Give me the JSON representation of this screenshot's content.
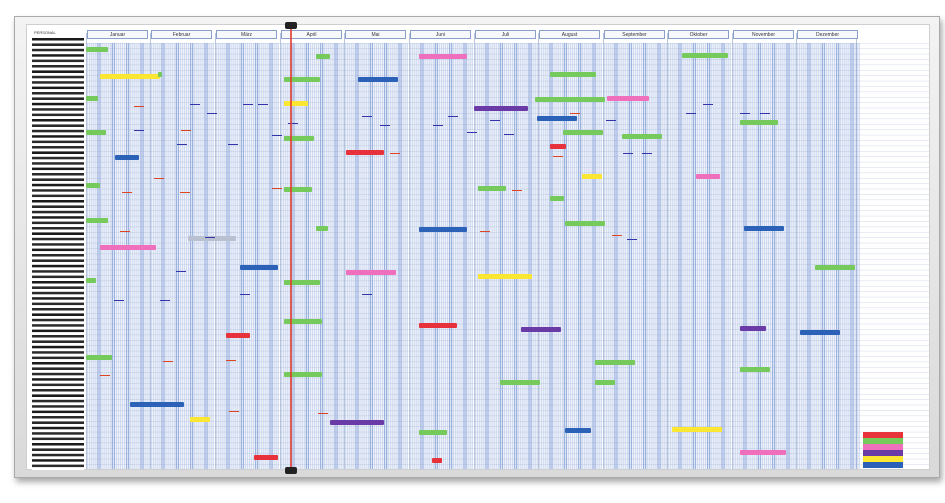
{
  "board": {
    "header_label": "PERSONAL",
    "months": [
      "Januar",
      "Februar",
      "März",
      "April",
      "Mai",
      "Juni",
      "Juli",
      "August",
      "September",
      "Oktober",
      "November",
      "Dezember"
    ]
  },
  "colors": {
    "frame": "#dcdcdc",
    "column": "#7d9bd6",
    "green": "#76c95b",
    "blue": "#2b62b8",
    "red": "#e8323b",
    "pink": "#f06fbd",
    "yellow": "#fbe631",
    "purple": "#6a3ba7",
    "grey": "#b9c0d0",
    "cursor": "#e23a2a"
  },
  "legend": [
    {
      "color": "#e8323b"
    },
    {
      "color": "#76c95b"
    },
    {
      "color": "#f06fbd"
    },
    {
      "color": "#6a3ba7"
    },
    {
      "color": "#fbe631"
    },
    {
      "color": "#2b62b8"
    }
  ]
}
